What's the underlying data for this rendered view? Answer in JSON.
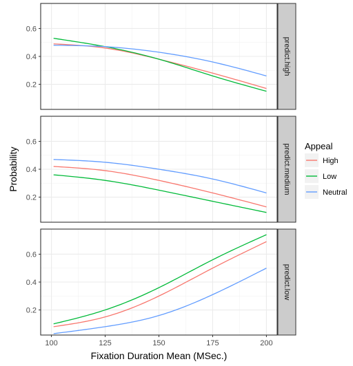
{
  "chart_data": {
    "type": "line",
    "facet_variable": "",
    "xlabel": "Fixation Duration Mean (MSec.)",
    "ylabel": "Probability",
    "xlim": [
      95,
      205
    ],
    "ylim": [
      0.02,
      0.78
    ],
    "x_ticks": [
      100,
      125,
      150,
      175,
      200
    ],
    "y_ticks": [
      0.2,
      0.4,
      0.6
    ],
    "grid": true,
    "legend": {
      "title": "Appeal",
      "placement": "right",
      "entries": [
        "High",
        "Low",
        "Neutral"
      ]
    },
    "colors": {
      "High": "#F8766D",
      "Low": "#00BA38",
      "Neutral": "#619CFF"
    },
    "x": [
      101,
      125,
      150,
      175,
      200
    ],
    "panels": [
      {
        "label": "predict.high",
        "series": [
          {
            "name": "High",
            "values": [
              0.49,
              0.46,
              0.38,
              0.28,
              0.17
            ]
          },
          {
            "name": "Low",
            "values": [
              0.53,
              0.47,
              0.38,
              0.26,
              0.15
            ]
          },
          {
            "name": "Neutral",
            "values": [
              0.48,
              0.47,
              0.43,
              0.36,
              0.26
            ]
          }
        ]
      },
      {
        "label": "predict.medium",
        "series": [
          {
            "name": "High",
            "values": [
              0.42,
              0.39,
              0.32,
              0.23,
              0.13
            ]
          },
          {
            "name": "Low",
            "values": [
              0.36,
              0.32,
              0.25,
              0.17,
              0.09
            ]
          },
          {
            "name": "Neutral",
            "values": [
              0.47,
              0.45,
              0.4,
              0.33,
              0.23
            ]
          }
        ]
      },
      {
        "label": "predict.low",
        "series": [
          {
            "name": "High",
            "values": [
              0.08,
              0.15,
              0.3,
              0.5,
              0.69
            ]
          },
          {
            "name": "Low",
            "values": [
              0.1,
              0.2,
              0.36,
              0.56,
              0.74
            ]
          },
          {
            "name": "Neutral",
            "values": [
              0.03,
              0.08,
              0.16,
              0.31,
              0.5
            ]
          }
        ]
      }
    ]
  }
}
